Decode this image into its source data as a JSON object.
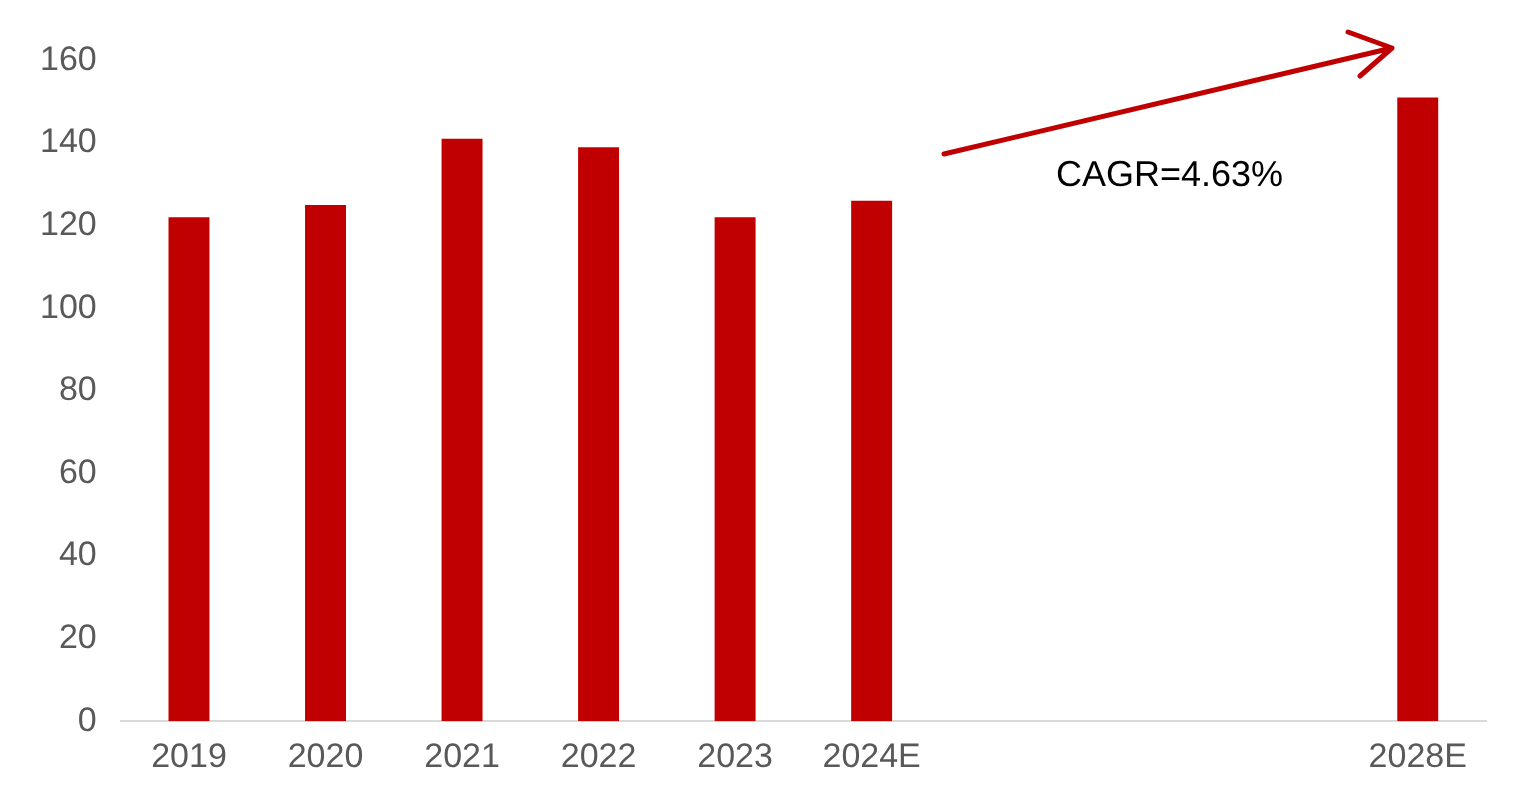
{
  "chart_data": {
    "type": "bar",
    "categories": [
      "2019",
      "2020",
      "2021",
      "2022",
      "2023",
      "2024E",
      null,
      null,
      null,
      "2028E"
    ],
    "values": [
      122,
      125,
      141,
      139,
      122,
      126,
      null,
      null,
      null,
      151
    ],
    "color": "#c00000",
    "ylim": [
      0,
      160
    ],
    "yticks": [
      0,
      20,
      40,
      60,
      80,
      100,
      120,
      140,
      160
    ],
    "grid": false,
    "legend": false,
    "annotations": [
      "CAGR=4.63%"
    ]
  }
}
